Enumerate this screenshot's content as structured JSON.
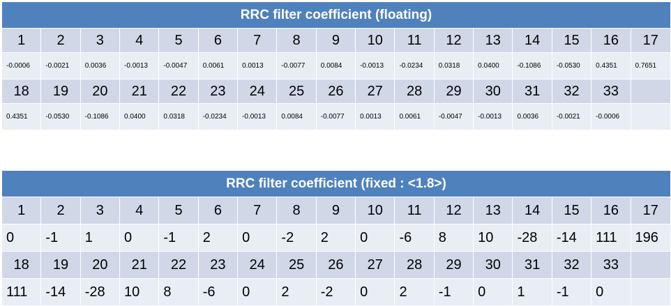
{
  "floating": {
    "title": "RRC filter coefficient (floating)",
    "row1_idx": [
      "1",
      "2",
      "3",
      "4",
      "5",
      "6",
      "7",
      "8",
      "9",
      "10",
      "11",
      "12",
      "13",
      "14",
      "15",
      "16",
      "17"
    ],
    "row1_val": [
      "-0.0006",
      "-0.0021",
      "0.0036",
      "-0.0013",
      "-0.0047",
      "0.0061",
      "0.0013",
      "-0.0077",
      "0.0084",
      "-0.0013",
      "-0.0234",
      "0.0318",
      "0.0400",
      "-0.1086",
      "-0.0530",
      "0.4351",
      "0.7651"
    ],
    "row2_idx": [
      "18",
      "19",
      "20",
      "21",
      "22",
      "23",
      "24",
      "25",
      "26",
      "27",
      "28",
      "29",
      "30",
      "31",
      "32",
      "33"
    ],
    "row2_val": [
      "0.4351",
      "-0.0530",
      "-0.1086",
      "0.0400",
      "0.0318",
      "-0.0234",
      "-0.0013",
      "0.0084",
      "-0.0077",
      "0.0013",
      "0.0061",
      "-0.0047",
      "-0.0013",
      "0.0036",
      "-0.0021",
      "-0.0006"
    ]
  },
  "fixed": {
    "title": "RRC filter coefficient (fixed : <1.8>)",
    "row1_idx": [
      "1",
      "2",
      "3",
      "4",
      "5",
      "6",
      "7",
      "8",
      "9",
      "10",
      "11",
      "12",
      "13",
      "14",
      "15",
      "16",
      "17"
    ],
    "row1_val": [
      "0",
      "-1",
      "1",
      "0",
      "-1",
      "2",
      "0",
      "-2",
      "2",
      "0",
      "-6",
      "8",
      "10",
      "-28",
      "-14",
      "111",
      "196"
    ],
    "row2_idx": [
      "18",
      "19",
      "20",
      "21",
      "22",
      "23",
      "24",
      "25",
      "26",
      "27",
      "28",
      "29",
      "30",
      "31",
      "32",
      "33"
    ],
    "row2_val": [
      "111",
      "-14",
      "-28",
      "10",
      "8",
      "-6",
      "0",
      "2",
      "-2",
      "0",
      "2",
      "-1",
      "0",
      "1",
      "-1",
      "0"
    ]
  },
  "colors": {
    "header": "#4f81bd",
    "index_row": "#d0d8e8",
    "value_row": "#e9edf4"
  }
}
